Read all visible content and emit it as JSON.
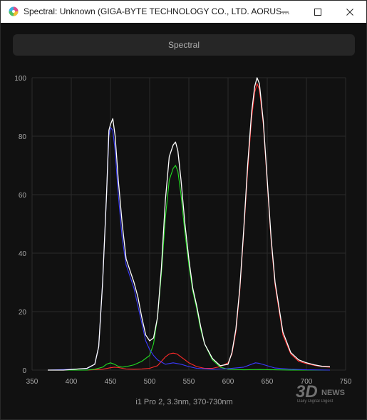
{
  "window": {
    "title": "Spectral: Unknown (GIGA-BYTE TECHNOLOGY CO., LTD. AORUS…",
    "minimize_icon": "minimize-icon",
    "maximize_icon": "maximize-icon",
    "close_icon": "close-icon"
  },
  "header": {
    "label": "Spectral"
  },
  "caption": "i1 Pro 2, 3.3nm, 370-730nm",
  "watermark": {
    "main": "3D",
    "sub1": "NEWS",
    "sub2": "Daily Digital Digest"
  },
  "colors": {
    "white": "#ffffff",
    "red": "#ff2a2a",
    "green": "#22dd22",
    "blue": "#3a3aff",
    "background": "#111111",
    "grid": "#2a2a2a"
  },
  "chart_data": {
    "type": "line",
    "xlim": [
      350,
      750
    ],
    "ylim": [
      0,
      100
    ],
    "x_ticks": [
      350,
      400,
      450,
      500,
      550,
      600,
      650,
      700,
      750
    ],
    "y_ticks": [
      0,
      20,
      40,
      60,
      80,
      100
    ],
    "grid": true,
    "series": [
      {
        "color": "white",
        "x": [
          370,
          390,
          420,
          430,
          435,
          440,
          445,
          448,
          450,
          453,
          456,
          460,
          465,
          470,
          475,
          480,
          485,
          490,
          495,
          500,
          505,
          510,
          515,
          520,
          525,
          530,
          533,
          536,
          540,
          545,
          550,
          555,
          560,
          565,
          570,
          580,
          590,
          600,
          605,
          610,
          615,
          620,
          625,
          630,
          634,
          637,
          640,
          645,
          650,
          655,
          660,
          670,
          680,
          690,
          700,
          710,
          720,
          730
        ],
        "y": [
          0,
          0,
          0.6,
          2,
          8,
          30,
          60,
          82,
          84,
          86,
          80,
          65,
          50,
          38,
          34,
          30,
          25,
          18,
          12,
          10,
          11,
          18,
          35,
          58,
          73,
          77,
          78,
          75,
          65,
          50,
          38,
          28,
          22,
          15,
          9,
          4,
          1.5,
          2,
          6,
          14,
          28,
          48,
          70,
          88,
          97,
          100,
          98,
          85,
          65,
          45,
          30,
          13,
          6,
          3.5,
          2.5,
          1.8,
          1.3,
          1.2
        ]
      },
      {
        "color": "blue",
        "x": [
          370,
          420,
          430,
          435,
          440,
          445,
          448,
          450,
          453,
          456,
          460,
          465,
          470,
          475,
          480,
          485,
          490,
          495,
          500,
          505,
          510,
          520,
          530,
          540,
          550,
          560,
          580,
          600,
          620,
          630,
          635,
          640,
          650,
          660,
          680,
          700,
          730
        ],
        "y": [
          0,
          0.5,
          2,
          8,
          30,
          60,
          80,
          83,
          82,
          75,
          60,
          45,
          36,
          32,
          28,
          22,
          16,
          10,
          7,
          5,
          3.5,
          2,
          2.5,
          2,
          1.2,
          0.6,
          0.3,
          0.5,
          1,
          2,
          2.5,
          2.3,
          1.5,
          0.7,
          0.3,
          0.1,
          0
        ]
      },
      {
        "color": "green",
        "x": [
          370,
          420,
          430,
          440,
          445,
          450,
          455,
          460,
          465,
          470,
          475,
          480,
          490,
          500,
          505,
          510,
          515,
          520,
          525,
          530,
          533,
          536,
          540,
          545,
          550,
          555,
          560,
          565,
          570,
          580,
          590,
          600,
          610,
          620,
          640,
          660,
          680,
          700,
          730
        ],
        "y": [
          0,
          0,
          0.3,
          1,
          2,
          2.5,
          2,
          1.3,
          1,
          1.2,
          1.5,
          1.8,
          3,
          5,
          9,
          18,
          33,
          52,
          65,
          69,
          70,
          68,
          60,
          47,
          36,
          27,
          21,
          14,
          9,
          3.5,
          1,
          0.3,
          0.2,
          0.1,
          0.2,
          0.1,
          0,
          0,
          0
        ]
      },
      {
        "color": "red",
        "x": [
          370,
          420,
          440,
          450,
          455,
          460,
          465,
          470,
          480,
          490,
          500,
          510,
          515,
          520,
          525,
          530,
          535,
          540,
          545,
          550,
          560,
          570,
          580,
          590,
          600,
          605,
          610,
          615,
          620,
          625,
          630,
          634,
          637,
          640,
          645,
          650,
          655,
          660,
          670,
          680,
          690,
          700,
          710,
          720,
          730
        ],
        "y": [
          0,
          0,
          0.3,
          0.8,
          1,
          0.9,
          0.6,
          0.4,
          0.3,
          0.4,
          0.6,
          1.5,
          3,
          4.5,
          5.5,
          5.8,
          5.5,
          4.5,
          3.5,
          2.5,
          1.2,
          0.6,
          0.6,
          1.2,
          2.5,
          5.5,
          13,
          27,
          47,
          68,
          86,
          95,
          98,
          96,
          84,
          64,
          44,
          29,
          12,
          5.5,
          3,
          2.2,
          1.6,
          1.2,
          1
        ]
      }
    ]
  }
}
